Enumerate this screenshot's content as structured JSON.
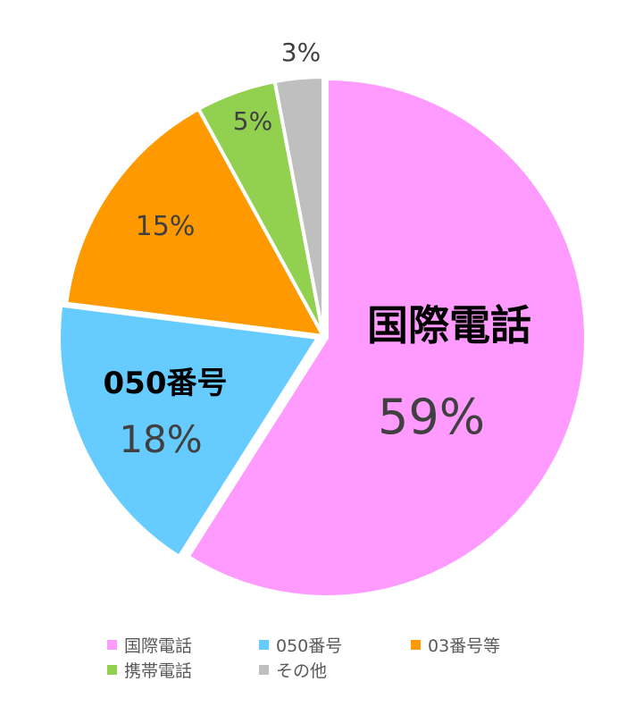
{
  "chart_data": {
    "type": "pie",
    "categories": [
      "国際電話",
      "050番号",
      "03番号等",
      "携帯電話",
      "その他"
    ],
    "values": [
      59,
      18,
      15,
      5,
      3
    ],
    "unit": "%",
    "data_labels": [
      "59%",
      "18%",
      "15%",
      "5%",
      "3%"
    ],
    "colors": [
      "#FF9BFF",
      "#66CCFF",
      "#FF9900",
      "#92D050",
      "#BFBFBF"
    ],
    "start_angle": "12 o'clock",
    "direction": "clockwise",
    "legend_position": "bottom",
    "title": ""
  }
}
